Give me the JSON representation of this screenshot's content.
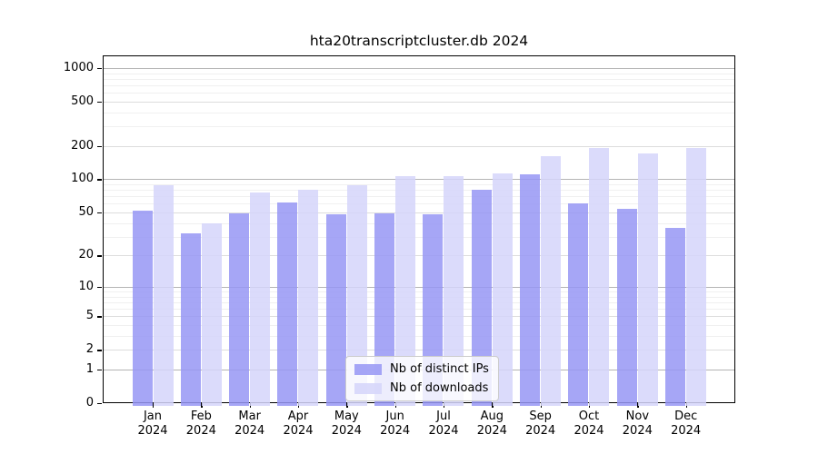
{
  "title": "hta20transcriptcluster.db 2024",
  "chart_data": {
    "type": "bar",
    "title": "hta20transcriptcluster.db 2024",
    "xlabel": "",
    "ylabel": "",
    "scale": "log10(1+x)",
    "grid": true,
    "legend_position": "bottom-center",
    "ylim": [
      0,
      1300
    ],
    "y_ticks": [
      0,
      1,
      2,
      5,
      10,
      20,
      50,
      100,
      200,
      500,
      1000
    ],
    "y_minor_ticks": [
      3,
      4,
      6,
      7,
      8,
      9,
      30,
      40,
      60,
      70,
      80,
      90,
      300,
      400,
      600,
      700,
      800,
      900
    ],
    "categories": [
      {
        "month": "Jan",
        "year": "2024"
      },
      {
        "month": "Feb",
        "year": "2024"
      },
      {
        "month": "Mar",
        "year": "2024"
      },
      {
        "month": "Apr",
        "year": "2024"
      },
      {
        "month": "May",
        "year": "2024"
      },
      {
        "month": "Jun",
        "year": "2024"
      },
      {
        "month": "Jul",
        "year": "2024"
      },
      {
        "month": "Aug",
        "year": "2024"
      },
      {
        "month": "Sep",
        "year": "2024"
      },
      {
        "month": "Oct",
        "year": "2024"
      },
      {
        "month": "Nov",
        "year": "2024"
      },
      {
        "month": "Dec",
        "year": "2024"
      }
    ],
    "series": [
      {
        "name": "Nb of distinct IPs",
        "color": "#9696f4",
        "values": [
          52,
          32,
          49,
          62,
          48,
          49,
          48,
          81,
          110,
          60,
          54,
          36
        ]
      },
      {
        "name": "Nb of downloads",
        "color": "#d5d5fa",
        "values": [
          88,
          40,
          76,
          81,
          88,
          106,
          106,
          112,
          163,
          190,
          170,
          190
        ]
      }
    ],
    "grid_colors": {
      "decade": "#b4b4b4",
      "mid": "#dddddd",
      "minor": "#f0f0f0"
    },
    "bar_alpha": 0.85
  }
}
